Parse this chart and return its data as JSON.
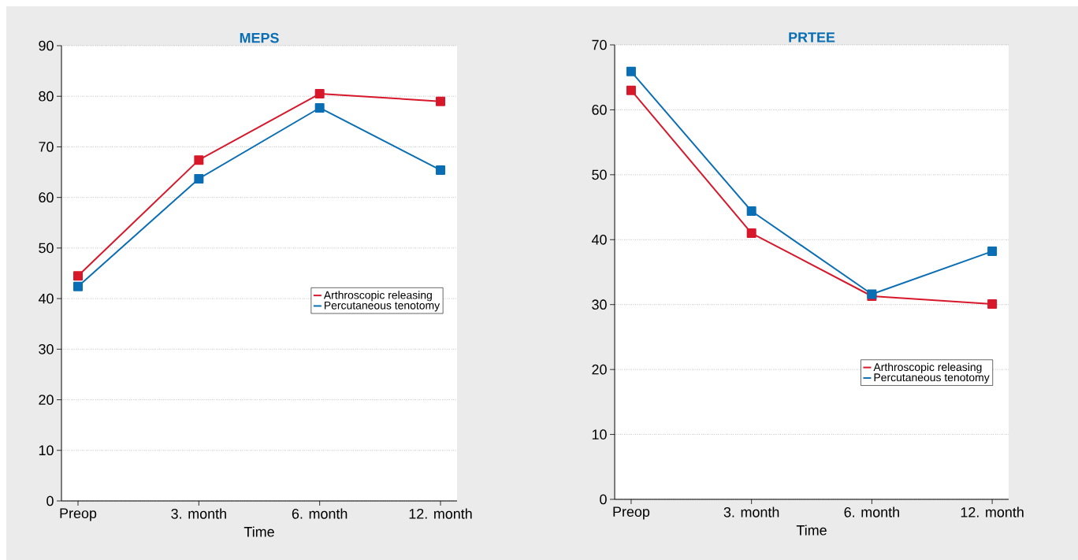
{
  "chart_data": [
    {
      "type": "line",
      "title": "MEPS",
      "xlabel": "Time",
      "categories": [
        "Preop",
        "3. month",
        "6. month",
        "12. month"
      ],
      "series": [
        {
          "name": "Arthroscopic releasing",
          "color": "#d7182a",
          "values": [
            44.5,
            67.4,
            80.5,
            79.0
          ]
        },
        {
          "name": "Percutaneous tenotomy",
          "color": "#0a6eb4",
          "values": [
            42.4,
            63.7,
            77.7,
            65.4
          ]
        }
      ],
      "ylim": [
        0,
        90
      ],
      "yticks": [
        0,
        10,
        20,
        30,
        40,
        50,
        60,
        70,
        80,
        90
      ],
      "grid": "y",
      "legend": "right",
      "marker": "square",
      "line_style": "solid"
    },
    {
      "type": "line",
      "title": "PRTEE",
      "xlabel": "Time",
      "categories": [
        "Preop",
        "3. month",
        "6. month",
        "12. month"
      ],
      "series": [
        {
          "name": "Arthroscopic releasing",
          "color": "#d7182a",
          "values": [
            63.0,
            41.0,
            31.3,
            30.1
          ]
        },
        {
          "name": "Percutaneous tenotomy",
          "color": "#0a6eb4",
          "values": [
            65.9,
            44.4,
            31.6,
            38.2
          ]
        }
      ],
      "ylim": [
        0,
        70
      ],
      "yticks": [
        0,
        10,
        20,
        30,
        40,
        50,
        60,
        70
      ],
      "grid": "y",
      "legend": "bottom right",
      "marker": "square",
      "line_style": "solid"
    }
  ]
}
